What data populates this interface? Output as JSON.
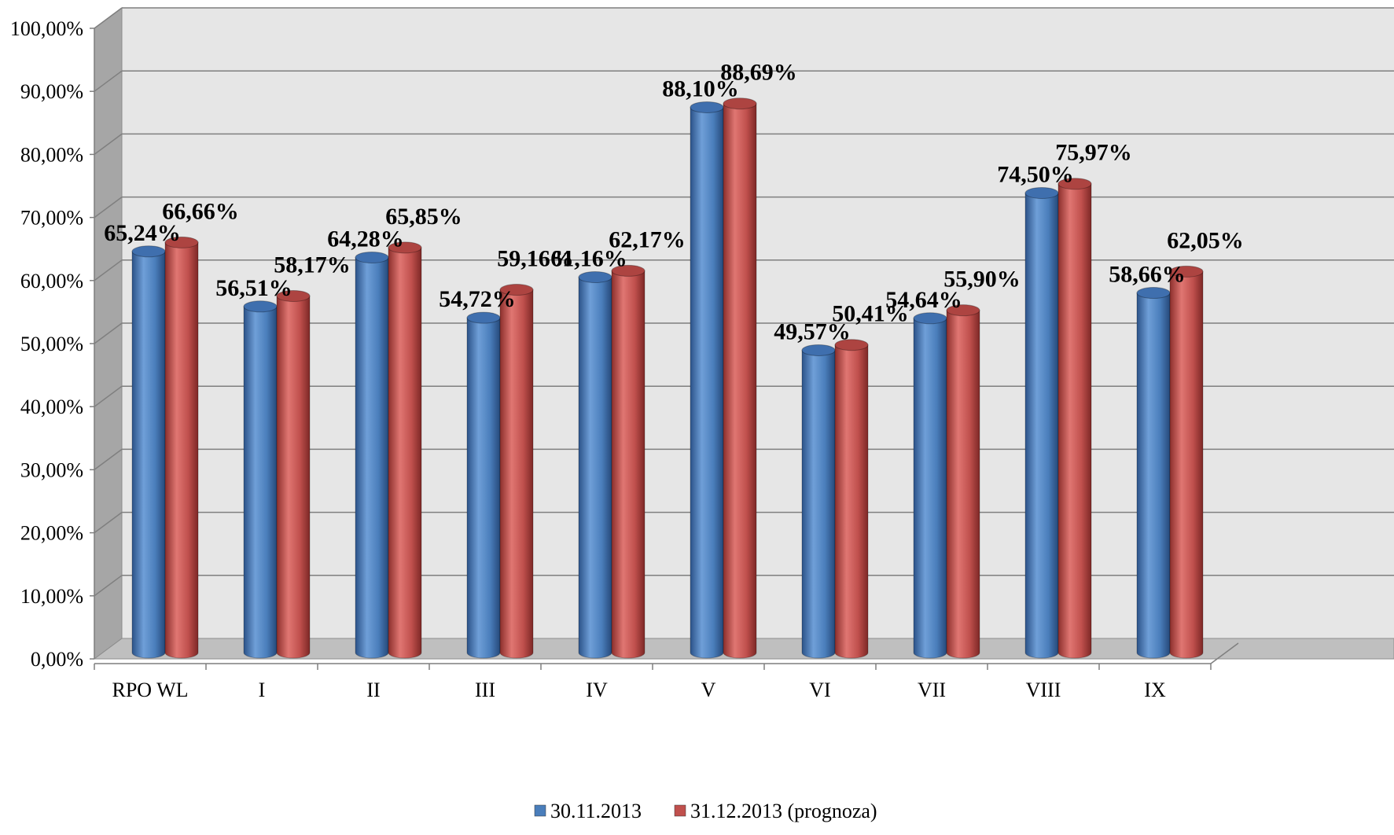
{
  "chart_data": {
    "type": "bar",
    "categories": [
      "RPO WL",
      "I",
      "II",
      "III",
      "IV",
      "V",
      "VI",
      "VII",
      "VIII",
      "IX"
    ],
    "series": [
      {
        "name": "30.11.2013",
        "values": [
          65.24,
          56.51,
          64.28,
          54.72,
          61.16,
          88.1,
          49.57,
          54.64,
          74.5,
          58.66
        ],
        "labels": [
          "65,24%",
          "56,51%",
          "64,28%",
          "54,72%",
          "61,16%",
          "88,10%",
          "49,57%",
          "54,64%",
          "74,50%",
          "58,66%"
        ],
        "color": "#4a7ebb"
      },
      {
        "name": "31.12.2013 (prognoza)",
        "values": [
          66.66,
          58.17,
          65.85,
          59.16,
          62.17,
          88.69,
          50.41,
          55.9,
          75.97,
          62.05
        ],
        "labels": [
          "66,66%",
          "58,17%",
          "65,85%",
          "59,16%",
          "62,17%",
          "88,69%",
          "50,41%",
          "55,90%",
          "75,97%",
          "62,05%"
        ],
        "color": "#c0504d"
      }
    ],
    "yticks": [
      "0,00%",
      "10,00%",
      "20,00%",
      "30,00%",
      "40,00%",
      "50,00%",
      "60,00%",
      "70,00%",
      "80,00%",
      "90,00%",
      "100,00%"
    ],
    "ylim": [
      0,
      100
    ],
    "grid": true,
    "legend_position": "bottom",
    "style": "3d-cylinder"
  }
}
